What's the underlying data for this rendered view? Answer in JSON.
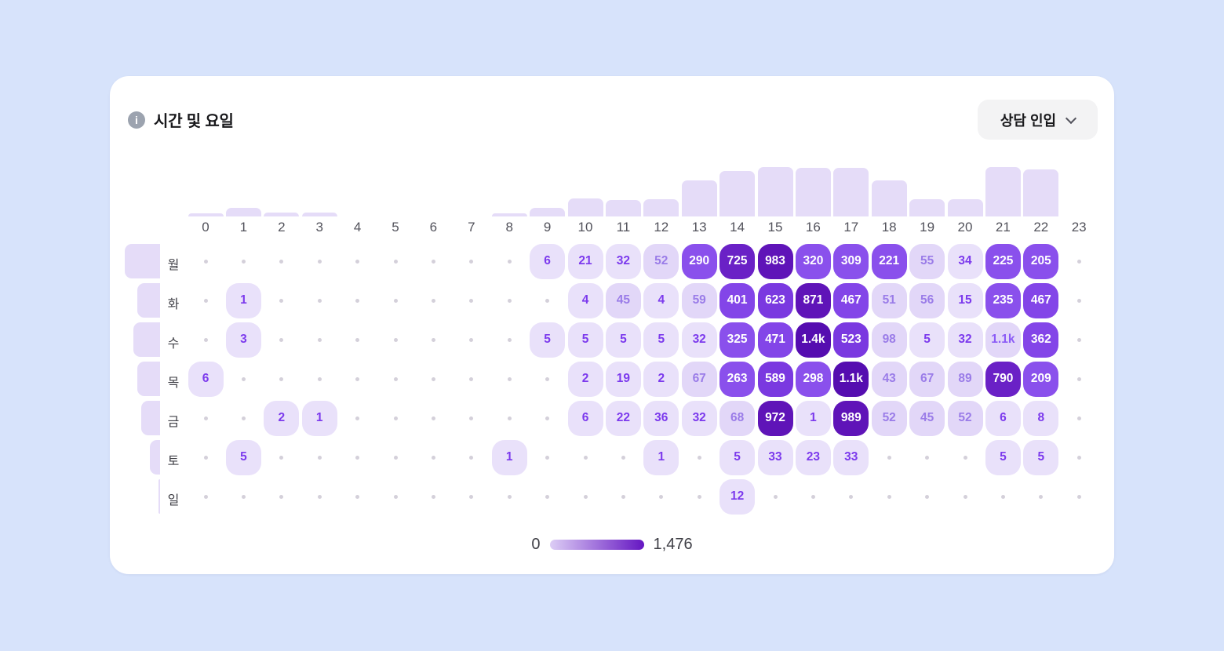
{
  "page_bg": "#d7e3fb",
  "header": {
    "title": "시간 및 요일",
    "info_icon_glyph": "i",
    "dropdown_label": "상담 인입"
  },
  "legend": {
    "min_label": "0",
    "max_label": "1,476"
  },
  "chart_data": {
    "type": "heatmap",
    "title": "시간 및 요일",
    "metric": "상담 인입",
    "value_range": [
      0,
      1476
    ],
    "hours": [
      "0",
      "1",
      "2",
      "3",
      "4",
      "5",
      "6",
      "7",
      "8",
      "9",
      "10",
      "11",
      "12",
      "13",
      "14",
      "15",
      "16",
      "17",
      "18",
      "19",
      "20",
      "21",
      "22",
      "23"
    ],
    "days": [
      "월",
      "화",
      "수",
      "목",
      "금",
      "토",
      "일"
    ],
    "cells": [
      [
        null,
        null,
        null,
        null,
        null,
        null,
        null,
        null,
        null,
        "6",
        "21",
        "32",
        "52",
        "290",
        "725",
        "983",
        "320",
        "309",
        "221",
        "55",
        "34",
        "225",
        "205",
        null
      ],
      [
        null,
        "1",
        null,
        null,
        null,
        null,
        null,
        null,
        null,
        null,
        "4",
        "45",
        "4",
        "59",
        "401",
        "623",
        "871",
        "467",
        "51",
        "56",
        "15",
        "235",
        "467",
        null
      ],
      [
        null,
        "3",
        null,
        null,
        null,
        null,
        null,
        null,
        null,
        "5",
        "5",
        "5",
        "5",
        "32",
        "325",
        "471",
        "1.4k",
        "523",
        "98",
        "5",
        "32",
        "1.1k",
        "362",
        null
      ],
      [
        "6",
        null,
        null,
        null,
        null,
        null,
        null,
        null,
        null,
        null,
        "2",
        "19",
        "2",
        "67",
        "263",
        "589",
        "298",
        "1.1k",
        "43",
        "67",
        "89",
        "790",
        "209",
        null
      ],
      [
        null,
        null,
        "2",
        "1",
        null,
        null,
        null,
        null,
        null,
        null,
        "6",
        "22",
        "36",
        "32",
        "68",
        "972",
        "1",
        "989",
        "52",
        "45",
        "52",
        "6",
        "8",
        null
      ],
      [
        null,
        "5",
        null,
        null,
        null,
        null,
        null,
        null,
        "1",
        null,
        null,
        null,
        "1",
        null,
        "5",
        "33",
        "23",
        "33",
        null,
        null,
        null,
        "5",
        "5",
        null
      ],
      [
        null,
        null,
        null,
        null,
        null,
        null,
        null,
        null,
        null,
        null,
        null,
        null,
        null,
        null,
        "12",
        null,
        null,
        null,
        null,
        null,
        null,
        null,
        null,
        null
      ]
    ],
    "anomalous_light_cells": [
      {
        "day_index": 2,
        "hour": 21
      }
    ],
    "column_bar_heights": [
      4,
      11,
      5,
      5,
      0,
      0,
      0,
      0,
      4,
      11,
      23,
      21,
      22,
      46,
      58,
      63,
      62,
      62,
      46,
      22,
      22,
      63,
      60,
      0
    ],
    "row_bar_widths": [
      45,
      29,
      34,
      29,
      24,
      13,
      2
    ],
    "palette": {
      "cell_light_bg": "#e9e1fa",
      "cell_light_text": "#7c3aed",
      "cell_light2_bg": "#e2d7f8",
      "cell_light2_text": "#9a7ce8",
      "anomalous_text": "#8b5cf6",
      "buckets": [
        [
          330,
          "#8a50ec"
        ],
        [
          500,
          "#8345e8"
        ],
        [
          650,
          "#7a39e0"
        ],
        [
          800,
          "#6a21c6"
        ],
        [
          1000,
          "#5f14b8"
        ],
        [
          1476,
          "#550db0"
        ]
      ],
      "cell_dark_text": "#ffffff",
      "bar_fill": "#e5dcf8",
      "empty_dot": "#d4d0da",
      "gradient_start": "#dccdf5",
      "gradient_end": "#6516c2"
    },
    "legend_min": "0",
    "legend_max": "1,476",
    "legend_position": "bottom-center"
  }
}
